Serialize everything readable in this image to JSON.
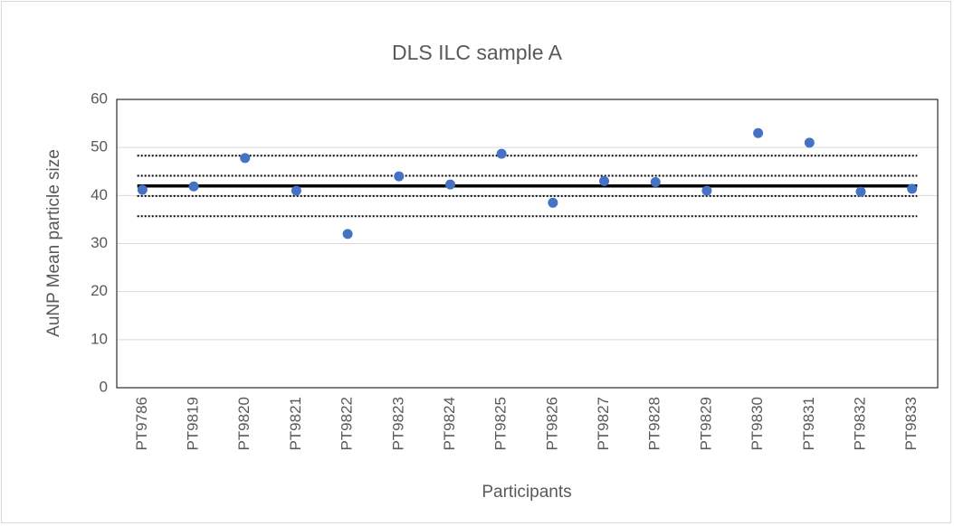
{
  "chart_data": {
    "type": "scatter",
    "title": "DLS ILC sample A",
    "x_label": "Participants",
    "y_label": "AuNP Mean particle size",
    "categories": [
      "PT9786",
      "PT9819",
      "PT9820",
      "PT9821",
      "PT9822",
      "PT9823",
      "PT9824",
      "PT9825",
      "PT9826",
      "PT9827",
      "PT9828",
      "PT9829",
      "PT9830",
      "PT9831",
      "PT9832",
      "PT9833"
    ],
    "values": [
      41.2,
      41.9,
      47.8,
      41.0,
      32.0,
      44.0,
      42.3,
      48.7,
      38.5,
      43.0,
      42.8,
      41.0,
      53.0,
      51.0,
      40.8,
      41.4
    ],
    "color": "#4472c4",
    "reference_lines": [
      {
        "value": 42.0,
        "style": "solid"
      },
      {
        "value": 48.3,
        "style": "dotted"
      },
      {
        "value": 44.1,
        "style": "dotted"
      },
      {
        "value": 39.9,
        "style": "dotted"
      },
      {
        "value": 35.7,
        "style": "dotted"
      }
    ],
    "ylim": [
      0,
      60
    ],
    "yticks": [
      0,
      10,
      20,
      30,
      40,
      50,
      60
    ],
    "grid": true
  }
}
